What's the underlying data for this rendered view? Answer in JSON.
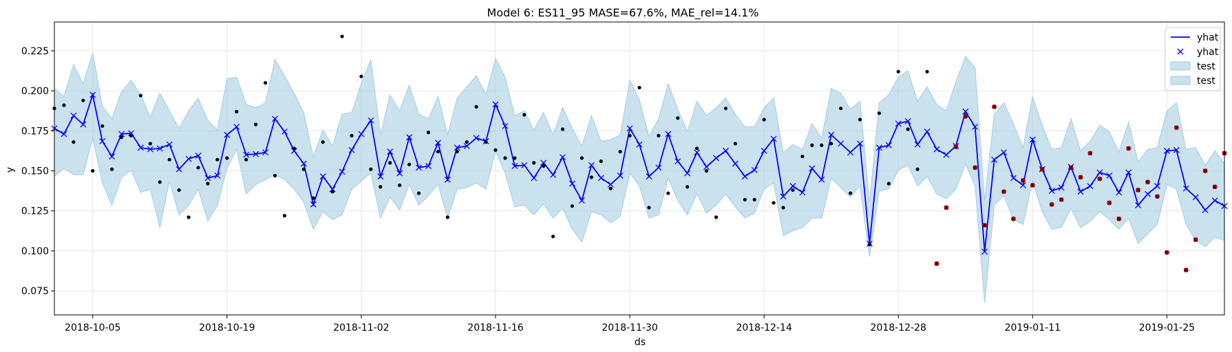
{
  "chart_data": {
    "type": "line",
    "title": "Model 6: ES11_95 MASE=67.6%, MAE_rel=14.1%",
    "xlabel": "ds",
    "ylabel": "y",
    "x_start": "2018-10-01",
    "x_end": "2019-01-31",
    "xlim": [
      "2018-10-01",
      "2019-01-31"
    ],
    "ylim": [
      0.06,
      0.243
    ],
    "x_tick_labels": [
      "2018-10-05",
      "2018-10-19",
      "2018-11-02",
      "2018-11-16",
      "2018-11-30",
      "2018-12-14",
      "2018-12-28",
      "2019-01-11",
      "2019-01-25"
    ],
    "y_tick_labels": [
      "0.075",
      "0.100",
      "0.125",
      "0.150",
      "0.175",
      "0.200",
      "0.225"
    ],
    "y_ticks": [
      0.075,
      0.1,
      0.125,
      0.15,
      0.175,
      0.2,
      0.225
    ],
    "grid": true,
    "legend_position": "top-right",
    "legend": [
      {
        "label": "yhat",
        "kind": "line",
        "color": "#0000ff"
      },
      {
        "label": "yhat",
        "kind": "marker-x",
        "color": "#0000ff"
      },
      {
        "label": "test",
        "kind": "band",
        "color": "#a6cde3"
      },
      {
        "label": "test",
        "kind": "band",
        "color": "#a6cde3"
      }
    ],
    "yhat": [
      0.1765,
      0.173,
      0.1845,
      0.179,
      0.1975,
      0.1685,
      0.159,
      0.173,
      0.1735,
      0.1645,
      0.1635,
      0.164,
      0.1665,
      0.151,
      0.1575,
      0.1595,
      0.1455,
      0.147,
      0.1725,
      0.1775,
      0.16,
      0.1605,
      0.1615,
      0.1825,
      0.1745,
      0.1625,
      0.1545,
      0.129,
      0.1465,
      0.1385,
      0.1495,
      0.163,
      0.173,
      0.1815,
      0.1465,
      0.162,
      0.1485,
      0.171,
      0.152,
      0.153,
      0.1675,
      0.1445,
      0.1645,
      0.1655,
      0.1705,
      0.1685,
      0.1915,
      0.178,
      0.153,
      0.1535,
      0.1455,
      0.155,
      0.1475,
      0.1585,
      0.142,
      0.1315,
      0.1535,
      0.1455,
      0.1415,
      0.147,
      0.1765,
      0.1665,
      0.1465,
      0.152,
      0.173,
      0.156,
      0.1485,
      0.1615,
      0.1525,
      0.158,
      0.1625,
      0.1545,
      0.1465,
      0.1505,
      0.1625,
      0.17,
      0.134,
      0.1405,
      0.1365,
      0.1515,
      0.1445,
      0.1725,
      0.167,
      0.1615,
      0.167,
      0.1045,
      0.1645,
      0.166,
      0.1795,
      0.181,
      0.1665,
      0.1745,
      0.1635,
      0.16,
      0.1655,
      0.187,
      0.1775,
      0.0995,
      0.157,
      0.1615,
      0.1455,
      0.141,
      0.1695,
      0.151,
      0.1375,
      0.1395,
      0.1525,
      0.137,
      0.1405,
      0.149,
      0.147,
      0.1365,
      0.149,
      0.1285,
      0.1355,
      0.1405,
      0.1625,
      0.163,
      0.139,
      0.1335,
      0.1255,
      0.1315,
      0.128
    ],
    "band_upper": [
      0.2015,
      0.1965,
      0.2165,
      0.2045,
      0.2235,
      0.1905,
      0.1825,
      0.1995,
      0.2065,
      0.1975,
      0.1835,
      0.1985,
      0.1875,
      0.1765,
      0.1875,
      0.1955,
      0.1815,
      0.1755,
      0.2075,
      0.2085,
      0.1915,
      0.1895,
      0.1925,
      0.2195,
      0.2095,
      0.1985,
      0.1865,
      0.1585,
      0.1755,
      0.1655,
      0.1855,
      0.1865,
      0.2045,
      0.2195,
      0.1725,
      0.1975,
      0.1875,
      0.2035,
      0.1855,
      0.1825,
      0.1965,
      0.1725,
      0.1955,
      0.2025,
      0.2095,
      0.1975,
      0.2205,
      0.2085,
      0.1845,
      0.1875,
      0.1755,
      0.1865,
      0.1725,
      0.1895,
      0.1765,
      0.1655,
      0.1845,
      0.1685,
      0.1695,
      0.1725,
      0.2065,
      0.1945,
      0.1715,
      0.1825,
      0.2045,
      0.1885,
      0.1745,
      0.1935,
      0.1845,
      0.1895,
      0.1955,
      0.1855,
      0.1775,
      0.1775,
      0.1895,
      0.1955,
      0.1615,
      0.1665,
      0.1635,
      0.1795,
      0.1705,
      0.2015,
      0.1985,
      0.1885,
      0.1935,
      0.1305,
      0.1925,
      0.1975,
      0.2085,
      0.2125,
      0.1935,
      0.2025,
      0.1915,
      0.1875,
      0.2055,
      0.2215,
      0.2145,
      0.1315,
      0.1855,
      0.1925,
      0.1795,
      0.1645,
      0.1965,
      0.1785,
      0.1635,
      0.1645,
      0.1825,
      0.1625,
      0.1685,
      0.1785,
      0.1745,
      0.1615,
      0.1805,
      0.1555,
      0.1635,
      0.1645,
      0.1875,
      0.1925,
      0.1635,
      0.1645,
      0.1535,
      0.1625,
      0.1545
    ],
    "band_lower": [
      0.1465,
      0.1515,
      0.1475,
      0.1475,
      0.1705,
      0.1425,
      0.1285,
      0.1455,
      0.1505,
      0.1365,
      0.1385,
      0.1145,
      0.1435,
      0.1225,
      0.1285,
      0.1385,
      0.1185,
      0.1285,
      0.1515,
      0.1635,
      0.1355,
      0.1415,
      0.1445,
      0.1475,
      0.1445,
      0.1385,
      0.1305,
      0.1135,
      0.1245,
      0.1195,
      0.1225,
      0.1385,
      0.1435,
      0.1485,
      0.1205,
      0.1335,
      0.1255,
      0.1415,
      0.1285,
      0.1345,
      0.1415,
      0.1205,
      0.1385,
      0.1395,
      0.1425,
      0.1385,
      0.1625,
      0.1485,
      0.1275,
      0.1285,
      0.1225,
      0.1295,
      0.1205,
      0.1265,
      0.1135,
      0.1055,
      0.1245,
      0.1225,
      0.1175,
      0.1215,
      0.1485,
      0.1405,
      0.1205,
      0.1225,
      0.1455,
      0.1315,
      0.1225,
      0.1355,
      0.1235,
      0.1285,
      0.1355,
      0.1275,
      0.1205,
      0.1235,
      0.1385,
      0.1425,
      0.1095,
      0.1125,
      0.1145,
      0.1205,
      0.1205,
      0.1455,
      0.1395,
      0.1335,
      0.1405,
      0.0965,
      0.1375,
      0.1385,
      0.1505,
      0.1535,
      0.1405,
      0.1465,
      0.1355,
      0.1325,
      0.1385,
      0.1545,
      0.1405,
      0.0675,
      0.1285,
      0.1345,
      0.1195,
      0.1165,
      0.1435,
      0.1245,
      0.1135,
      0.1145,
      0.1265,
      0.1145,
      0.1185,
      0.1245,
      0.1195,
      0.1135,
      0.1205,
      0.1045,
      0.1105,
      0.1165,
      0.1415,
      0.1385,
      0.1165,
      0.1065,
      0.1025,
      0.1085,
      0.1065
    ],
    "observed": [
      [
        "2018-10-01",
        0.189
      ],
      [
        "2018-10-02",
        0.191
      ],
      [
        "2018-10-03",
        0.168
      ],
      [
        "2018-10-04",
        0.194
      ],
      [
        "2018-10-05",
        0.15
      ],
      [
        "2018-10-06",
        0.178
      ],
      [
        "2018-10-07",
        0.151
      ],
      [
        "2018-10-08",
        0.171
      ],
      [
        "2018-10-09",
        0.172
      ],
      [
        "2018-10-10",
        0.197
      ],
      [
        "2018-10-11",
        0.167
      ],
      [
        "2018-10-12",
        0.143
      ],
      [
        "2018-10-13",
        0.157
      ],
      [
        "2018-10-14",
        0.138
      ],
      [
        "2018-10-15",
        0.121
      ],
      [
        "2018-10-16",
        0.152
      ],
      [
        "2018-10-17",
        0.142
      ],
      [
        "2018-10-18",
        0.157
      ],
      [
        "2018-10-19",
        0.158
      ],
      [
        "2018-10-20",
        0.187
      ],
      [
        "2018-10-21",
        0.157
      ],
      [
        "2018-10-22",
        0.179
      ],
      [
        "2018-10-23",
        0.205
      ],
      [
        "2018-10-24",
        0.147
      ],
      [
        "2018-10-25",
        0.122
      ],
      [
        "2018-10-26",
        0.164
      ],
      [
        "2018-10-27",
        0.151
      ],
      [
        "2018-10-28",
        0.133
      ],
      [
        "2018-10-29",
        0.168
      ],
      [
        "2018-10-30",
        0.137
      ],
      [
        "2018-10-31",
        0.234
      ],
      [
        "2018-11-01",
        0.172
      ],
      [
        "2018-11-02",
        0.209
      ],
      [
        "2018-11-03",
        0.151
      ],
      [
        "2018-11-04",
        0.14
      ],
      [
        "2018-11-05",
        0.155
      ],
      [
        "2018-11-06",
        0.141
      ],
      [
        "2018-11-07",
        0.154
      ],
      [
        "2018-11-08",
        0.136
      ],
      [
        "2018-11-09",
        0.174
      ],
      [
        "2018-11-10",
        0.162
      ],
      [
        "2018-11-11",
        0.121
      ],
      [
        "2018-11-12",
        0.162
      ],
      [
        "2018-11-13",
        0.168
      ],
      [
        "2018-11-14",
        0.19
      ],
      [
        "2018-11-15",
        0.168
      ],
      [
        "2018-11-16",
        0.163
      ],
      [
        "2018-11-17",
        0.158
      ],
      [
        "2018-11-18",
        0.158
      ],
      [
        "2018-11-19",
        0.185
      ],
      [
        "2018-11-20",
        0.155
      ],
      [
        "2018-11-21",
        0.153
      ],
      [
        "2018-11-22",
        0.109
      ],
      [
        "2018-11-23",
        0.176
      ],
      [
        "2018-11-24",
        0.128
      ],
      [
        "2018-11-25",
        0.158
      ],
      [
        "2018-11-26",
        0.146
      ],
      [
        "2018-11-27",
        0.156
      ],
      [
        "2018-11-28",
        0.139
      ],
      [
        "2018-11-29",
        0.162
      ],
      [
        "2018-11-30",
        0.172
      ],
      [
        "2018-12-01",
        0.202
      ],
      [
        "2018-12-02",
        0.127
      ],
      [
        "2018-12-03",
        0.172
      ],
      [
        "2018-12-04",
        0.136
      ],
      [
        "2018-12-05",
        0.183
      ],
      [
        "2018-12-06",
        0.14
      ],
      [
        "2018-12-07",
        0.164
      ],
      [
        "2018-12-08",
        0.15
      ],
      [
        "2018-12-09",
        0.121
      ],
      [
        "2018-12-10",
        0.189
      ],
      [
        "2018-12-11",
        0.167
      ],
      [
        "2018-12-12",
        0.132
      ],
      [
        "2018-12-13",
        0.132
      ],
      [
        "2018-12-14",
        0.182
      ],
      [
        "2018-12-15",
        0.13
      ],
      [
        "2018-12-16",
        0.127
      ],
      [
        "2018-12-17",
        0.138
      ],
      [
        "2018-12-18",
        0.159
      ],
      [
        "2018-12-19",
        0.166
      ],
      [
        "2018-12-20",
        0.166
      ],
      [
        "2018-12-21",
        0.167
      ],
      [
        "2018-12-22",
        0.189
      ],
      [
        "2018-12-23",
        0.136
      ],
      [
        "2018-12-24",
        0.182
      ],
      [
        "2018-12-25",
        0.104
      ],
      [
        "2018-12-26",
        0.186
      ],
      [
        "2018-12-27",
        0.142
      ],
      [
        "2018-12-28",
        0.212
      ],
      [
        "2018-12-29",
        0.176
      ],
      [
        "2018-12-30",
        0.151
      ],
      [
        "2018-12-31",
        0.212
      ]
    ],
    "test_points": [
      [
        "2019-01-01",
        0.092
      ],
      [
        "2019-01-02",
        0.127
      ],
      [
        "2019-01-03",
        0.165
      ],
      [
        "2019-01-04",
        0.184
      ],
      [
        "2019-01-05",
        0.152
      ],
      [
        "2019-01-06",
        0.116
      ],
      [
        "2019-01-07",
        0.19
      ],
      [
        "2019-01-08",
        0.137
      ],
      [
        "2019-01-09",
        0.12
      ],
      [
        "2019-01-10",
        0.144
      ],
      [
        "2019-01-11",
        0.141
      ],
      [
        "2019-01-12",
        0.151
      ],
      [
        "2019-01-13",
        0.129
      ],
      [
        "2019-01-14",
        0.132
      ],
      [
        "2019-01-15",
        0.152
      ],
      [
        "2019-01-16",
        0.146
      ],
      [
        "2019-01-17",
        0.161
      ],
      [
        "2019-01-18",
        0.145
      ],
      [
        "2019-01-19",
        0.13
      ],
      [
        "2019-01-20",
        0.12
      ],
      [
        "2019-01-21",
        0.164
      ],
      [
        "2019-01-22",
        0.138
      ],
      [
        "2019-01-23",
        0.143
      ],
      [
        "2019-01-24",
        0.134
      ],
      [
        "2019-01-25",
        0.099
      ],
      [
        "2019-01-26",
        0.177
      ],
      [
        "2019-01-27",
        0.088
      ],
      [
        "2019-01-28",
        0.107
      ],
      [
        "2019-01-29",
        0.15
      ],
      [
        "2019-01-30",
        0.14
      ],
      [
        "2019-01-31",
        0.161
      ]
    ],
    "colors": {
      "yhat": "#0000ff",
      "band": "#a6cde3",
      "observed": "#000000",
      "test_marker": "#cc0000",
      "grid": "#e6e6e6"
    }
  }
}
